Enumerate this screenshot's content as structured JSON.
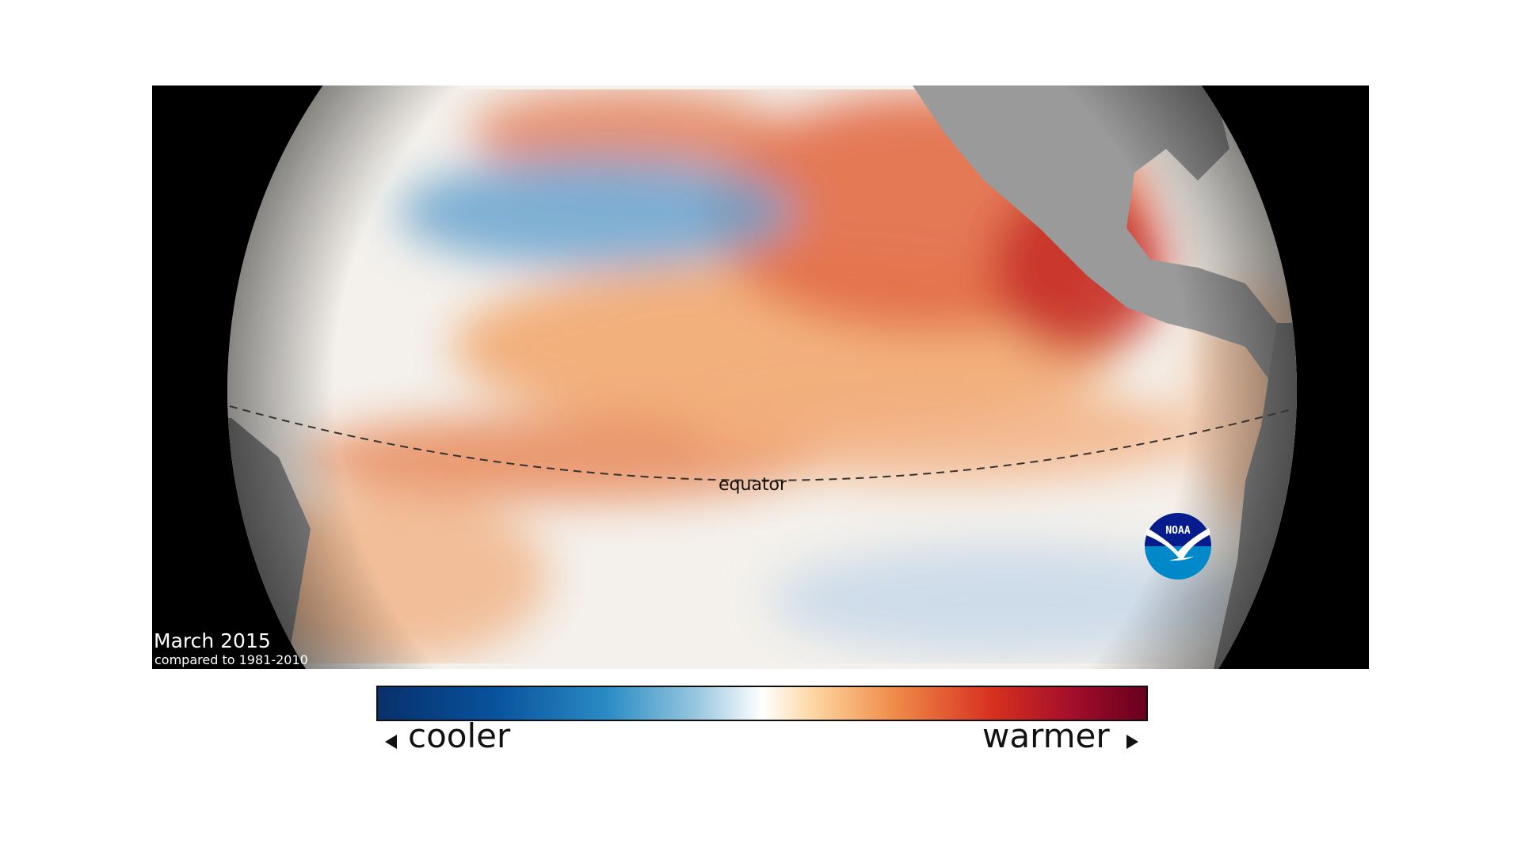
{
  "map": {
    "date_label": "March 2015",
    "baseline_label": "compared to 1981-2010",
    "equator_label": "equator",
    "logo_text": "NOAA"
  },
  "legend": {
    "cool_label": "cooler",
    "warm_label": "warmer",
    "colors": [
      "#08306b",
      "#08519c",
      "#2b8cc4",
      "#9ecae1",
      "#ffffff",
      "#fdd49e",
      "#f08c4a",
      "#d7301f",
      "#a50f2b",
      "#67001f"
    ]
  }
}
